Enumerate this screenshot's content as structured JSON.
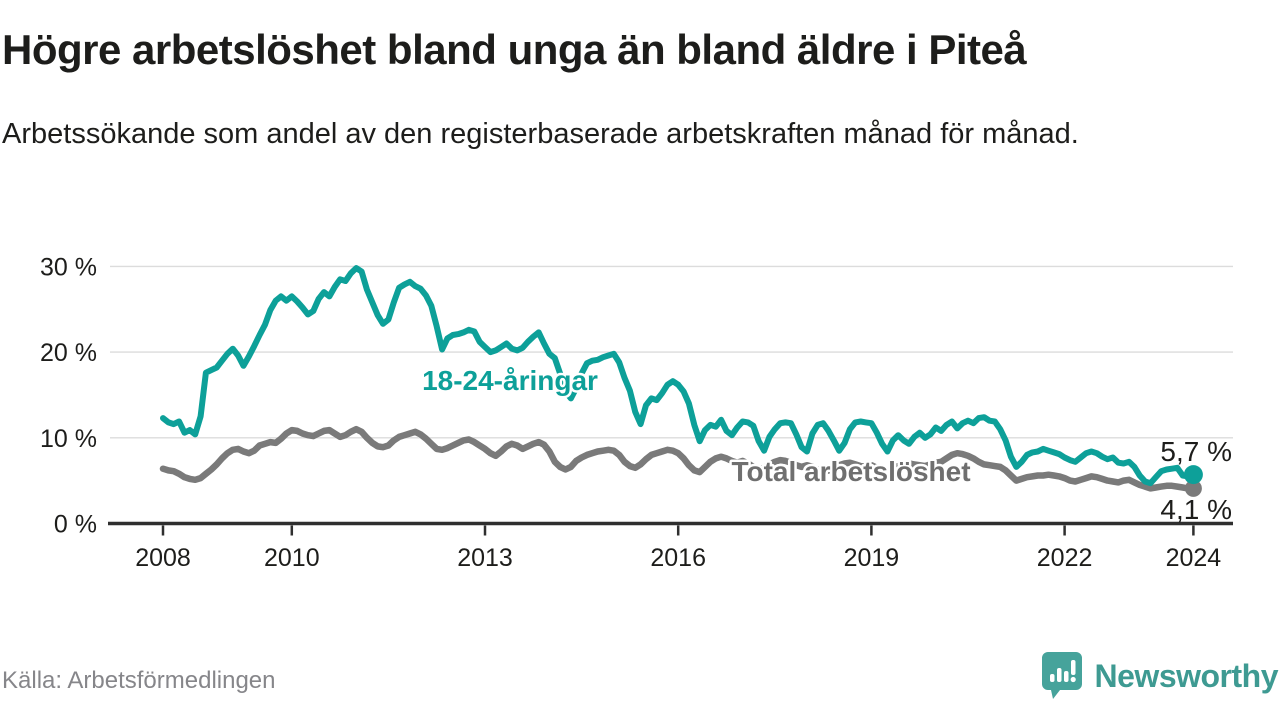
{
  "header": {
    "title": "Högre arbetslöshet bland unga än bland äldre i Piteå",
    "subtitle": "Arbetssökande som andel av den registerbaserade arbetskraften månad för månad."
  },
  "footer": {
    "source": "Källa: Arbetsförmedlingen",
    "brand": "Newsworthy"
  },
  "colors": {
    "youth_series": "#0da099",
    "total_series": "#7a7a7a",
    "total_label": "#6f6f6f",
    "gridline": "#dcdcdc",
    "axis": "#2f2f2f",
    "text": "#1d1d1b",
    "brand_teal": "#46a39b"
  },
  "chart_data": {
    "type": "line",
    "title": "Högre arbetslöshet bland unga än bland äldre i Piteå",
    "subtitle": "Arbetssökande som andel av den registerbaserade arbetskraften månad för månad.",
    "unit": "%",
    "grid": true,
    "legend_position": "inline-labels-on-lines",
    "x_axis": {
      "min": 2008,
      "max": 2024.65,
      "ticks": [
        2008,
        2010,
        2013,
        2016,
        2019,
        2022,
        2024
      ],
      "tick_labels": [
        "2008",
        "2010",
        "2013",
        "2016",
        "2019",
        "2022",
        "2024"
      ]
    },
    "y_axis": {
      "min": 0,
      "max": 31.5,
      "ticks": [
        0,
        10,
        20,
        30
      ],
      "tick_labels": [
        "0 %",
        "10 %",
        "20 %",
        "30 %"
      ]
    },
    "series": [
      {
        "name": "18-24-åringar",
        "color": "#0da099",
        "end_label": "5,7 %",
        "last_value": 5.7,
        "start_year": 2008,
        "points_per_year": 12,
        "values": [
          12.3,
          11.8,
          11.6,
          11.9,
          10.6,
          10.9,
          10.4,
          12.5,
          17.6,
          17.9,
          18.2,
          19.0,
          19.8,
          20.4,
          19.6,
          18.4,
          19.5,
          20.7,
          22.0,
          23.2,
          24.9,
          26.0,
          26.5,
          26.0,
          26.5,
          25.9,
          25.2,
          24.4,
          24.8,
          26.2,
          27.0,
          26.5,
          27.6,
          28.5,
          28.3,
          29.2,
          29.8,
          29.4,
          27.3,
          25.8,
          24.3,
          23.3,
          23.8,
          25.8,
          27.5,
          27.9,
          28.2,
          27.7,
          27.4,
          26.6,
          25.4,
          23.0,
          20.3,
          21.6,
          22.0,
          22.1,
          22.3,
          22.6,
          22.4,
          21.2,
          20.6,
          20.0,
          20.2,
          20.6,
          21.0,
          20.4,
          20.2,
          20.5,
          21.2,
          21.8,
          22.3,
          21.0,
          19.8,
          19.3,
          17.5,
          15.4,
          14.6,
          15.8,
          17.5,
          18.7,
          19.0,
          19.1,
          19.4,
          19.6,
          19.8,
          18.8,
          17.0,
          15.5,
          13.0,
          11.6,
          13.8,
          14.6,
          14.4,
          15.2,
          16.2,
          16.6,
          16.2,
          15.4,
          14.0,
          11.5,
          9.6,
          10.9,
          11.5,
          11.3,
          12.1,
          10.8,
          10.3,
          11.2,
          11.9,
          11.8,
          11.4,
          9.6,
          8.5,
          10.1,
          11.0,
          11.7,
          11.8,
          11.7,
          10.4,
          8.9,
          8.4,
          10.5,
          11.5,
          11.7,
          10.8,
          9.7,
          8.5,
          9.4,
          11.0,
          11.8,
          11.9,
          11.8,
          11.7,
          10.6,
          9.3,
          8.4,
          9.7,
          10.3,
          9.7,
          9.3,
          10.1,
          10.6,
          10.0,
          10.4,
          11.2,
          10.8,
          11.5,
          11.9,
          11.1,
          11.7,
          12.0,
          11.7,
          12.3,
          12.4,
          12.0,
          11.9,
          11.0,
          9.7,
          7.8,
          6.6,
          7.2,
          8.0,
          8.3,
          8.4,
          8.7,
          8.5,
          8.3,
          8.1,
          7.7,
          7.4,
          7.2,
          7.7,
          8.2,
          8.4,
          8.2,
          7.8,
          7.5,
          7.7,
          7.1,
          7.0,
          7.2,
          6.6,
          5.6,
          4.9,
          4.7,
          5.4,
          6.1,
          6.3,
          6.4,
          6.5,
          5.6,
          5.5,
          5.7
        ]
      },
      {
        "name": "Total arbetslöshet",
        "color": "#7a7a7a",
        "end_label": "4,1 %",
        "last_value": 4.1,
        "start_year": 2008,
        "points_per_year": 12,
        "values": [
          6.4,
          6.2,
          6.1,
          5.8,
          5.4,
          5.2,
          5.1,
          5.3,
          5.8,
          6.3,
          6.9,
          7.6,
          8.2,
          8.6,
          8.7,
          8.4,
          8.2,
          8.5,
          9.1,
          9.3,
          9.5,
          9.4,
          9.9,
          10.5,
          10.9,
          10.8,
          10.5,
          10.3,
          10.2,
          10.5,
          10.8,
          10.9,
          10.5,
          10.1,
          10.3,
          10.7,
          11.0,
          10.7,
          10.0,
          9.4,
          9.0,
          8.9,
          9.1,
          9.7,
          10.1,
          10.3,
          10.5,
          10.7,
          10.4,
          9.9,
          9.3,
          8.7,
          8.6,
          8.8,
          9.1,
          9.4,
          9.7,
          9.8,
          9.5,
          9.1,
          8.7,
          8.2,
          7.9,
          8.4,
          9.0,
          9.3,
          9.1,
          8.7,
          9.0,
          9.3,
          9.5,
          9.2,
          8.4,
          7.2,
          6.6,
          6.3,
          6.6,
          7.3,
          7.7,
          8.0,
          8.2,
          8.4,
          8.5,
          8.6,
          8.5,
          8.0,
          7.2,
          6.7,
          6.5,
          6.9,
          7.5,
          8.0,
          8.2,
          8.4,
          8.6,
          8.5,
          8.2,
          7.6,
          6.8,
          6.2,
          6.0,
          6.6,
          7.2,
          7.6,
          7.8,
          7.6,
          7.3,
          7.1,
          7.3,
          7.0,
          6.6,
          6.3,
          6.5,
          6.9,
          7.2,
          7.4,
          7.3,
          7.1,
          6.8,
          6.6,
          6.8,
          6.6,
          6.3,
          6.0,
          6.2,
          6.5,
          6.8,
          7.0,
          7.1,
          6.9,
          6.7,
          6.6,
          6.8,
          6.5,
          6.2,
          6.1,
          6.4,
          6.7,
          6.9,
          7.0,
          6.9,
          6.8,
          6.7,
          6.9,
          7.1,
          7.2,
          7.6,
          8.0,
          8.2,
          8.1,
          7.9,
          7.6,
          7.2,
          6.9,
          6.8,
          6.7,
          6.6,
          6.2,
          5.6,
          5.0,
          5.2,
          5.4,
          5.5,
          5.6,
          5.6,
          5.7,
          5.6,
          5.5,
          5.3,
          5.0,
          4.9,
          5.1,
          5.3,
          5.5,
          5.4,
          5.2,
          5.0,
          4.9,
          4.8,
          5.0,
          5.1,
          4.8,
          4.5,
          4.3,
          4.1,
          4.2,
          4.3,
          4.4,
          4.4,
          4.3,
          4.2,
          4.1,
          4.1
        ]
      }
    ]
  }
}
